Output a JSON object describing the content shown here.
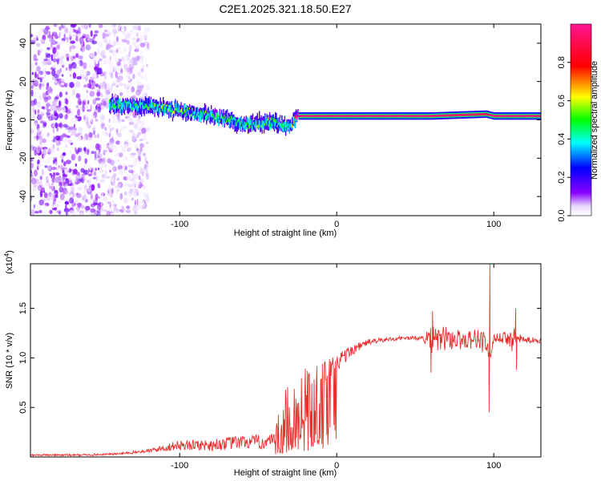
{
  "title": "C2E1.2025.321.18.50.E27",
  "charts": [
    {
      "type": "heatmap",
      "xlabel": "Height of straight line (km)",
      "ylabel": "Frequency (Hz)",
      "xlim": [
        -195,
        130
      ],
      "ylim": [
        -50,
        50
      ],
      "x_ticks": [
        -100,
        0,
        100
      ],
      "y_ticks": [
        -40,
        -20,
        0,
        20,
        40
      ],
      "colorbar": {
        "label": "Normalized spectral amplitude",
        "range": [
          0,
          1
        ],
        "ticks": [
          0,
          0.2,
          0.4,
          0.6,
          0.8
        ],
        "tick_labels": [
          "0.0",
          "0.2",
          "0.4",
          "0.6",
          "0.8"
        ]
      },
      "ridge": {
        "x": [
          -140,
          -120,
          -100,
          -80,
          -60,
          -40,
          -30,
          -25,
          0,
          60,
          95,
          100,
          130
        ],
        "center_freq_hz": [
          8,
          7,
          5,
          2,
          -2,
          -1,
          -4,
          2,
          2,
          2,
          3,
          2,
          2
        ],
        "max_amplitude": [
          0.5,
          0.5,
          0.55,
          0.5,
          0.45,
          0.5,
          0.4,
          0.95,
          0.95,
          0.95,
          0.9,
          0.95,
          0.95
        ]
      },
      "noise_region_x": [
        -195,
        -130
      ]
    },
    {
      "type": "line",
      "xlabel": "Height of straight line (km)",
      "ylabel": "SNR (10 * v/v)",
      "y_multiplier_label": "(x10^4)",
      "xlim": [
        -195,
        130
      ],
      "ylim": [
        0,
        1.95
      ],
      "x_ticks": [
        -100,
        0,
        100
      ],
      "y_ticks": [
        0.5,
        1.0,
        1.5
      ],
      "y_tick_labels": [
        "0.5",
        "1.0",
        "1.5"
      ],
      "series": [
        {
          "name": "SNR",
          "color": "#e8302e",
          "x": [
            -195,
            -160,
            -140,
            -120,
            -100,
            -80,
            -60,
            -40,
            -35,
            -30,
            -25,
            -20,
            -15,
            -10,
            -5,
            0,
            10,
            20,
            40,
            55,
            60,
            70,
            80,
            90,
            95,
            98,
            100,
            105,
            110,
            112,
            115,
            120,
            130
          ],
          "y": [
            0.02,
            0.02,
            0.03,
            0.06,
            0.12,
            0.12,
            0.15,
            0.15,
            0.3,
            0.45,
            0.55,
            0.6,
            0.65,
            0.75,
            0.85,
            0.95,
            1.08,
            1.16,
            1.2,
            1.2,
            1.17,
            1.2,
            1.18,
            1.2,
            1.15,
            1.0,
            1.2,
            1.2,
            1.2,
            1.18,
            1.2,
            1.18,
            1.18
          ],
          "noise_amplitude": [
            0.01,
            0.01,
            0.01,
            0.02,
            0.05,
            0.06,
            0.07,
            0.08,
            0.3,
            0.35,
            0.3,
            0.3,
            0.25,
            0.2,
            0.15,
            0.1,
            0.05,
            0.03,
            0.02,
            0.02,
            0.15,
            0.12,
            0.1,
            0.1,
            0.15,
            0.0,
            0.05,
            0.05,
            0.08,
            0.15,
            0.05,
            0.03,
            0.03
          ],
          "spikes": [
            {
              "x": 97.5,
              "y": 1.95
            },
            {
              "x": 97.0,
              "y": 0.45
            },
            {
              "x": 61,
              "y": 1.47
            },
            {
              "x": 60,
              "y": 0.85
            },
            {
              "x": 114,
              "y": 1.5
            },
            {
              "x": 114.5,
              "y": 0.88
            }
          ]
        }
      ]
    }
  ]
}
